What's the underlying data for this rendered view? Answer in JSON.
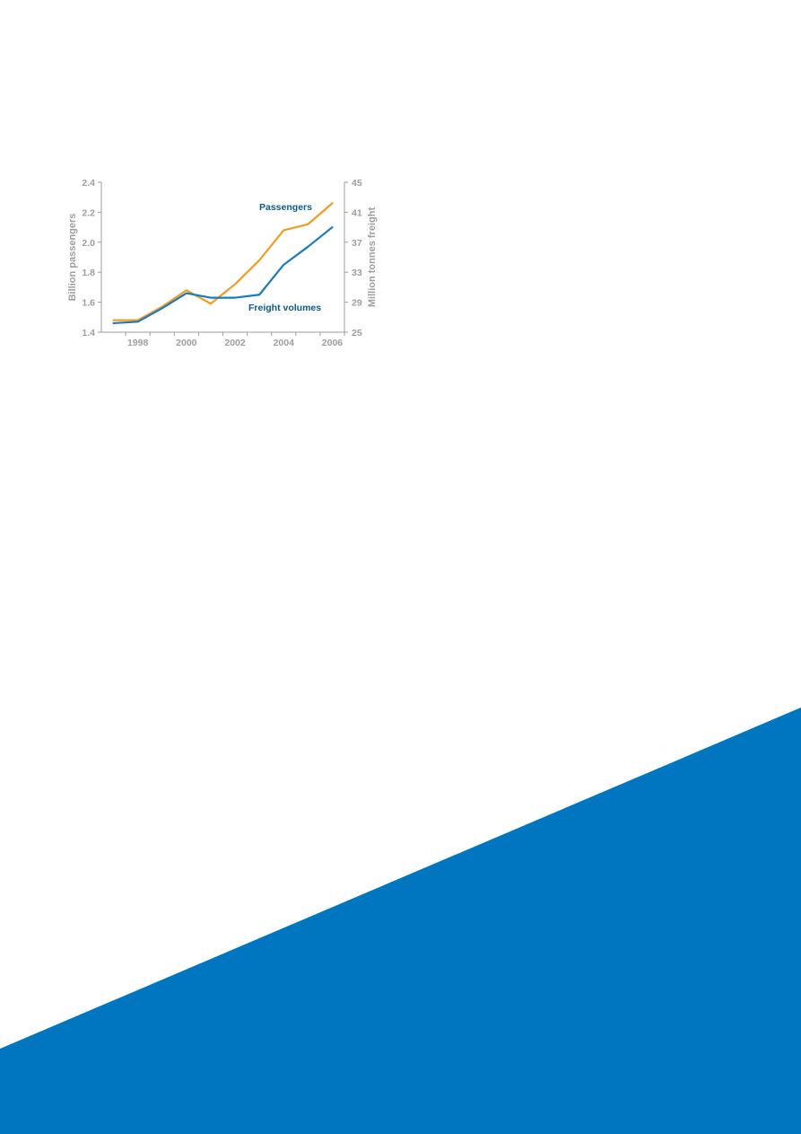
{
  "colors": {
    "background": "#ffffff",
    "axis": "#9e9e9e",
    "tick_text": "#9e9e9e",
    "passengers_line": "#f39c24",
    "freight_line": "#1a7bc0",
    "series_label_text": "#0a5a8c",
    "decorative_band": "#0075c0"
  },
  "chart_data": {
    "type": "line",
    "x": [
      1997,
      1998,
      1999,
      2000,
      2001,
      2002,
      2003,
      2004,
      2005,
      2006
    ],
    "x_ticks": [
      1998,
      2000,
      2002,
      2004,
      2006
    ],
    "x_tick_labels": [
      "1998",
      "2000",
      "2002",
      "2004",
      "2006"
    ],
    "xlim": [
      1996.5,
      2006.5
    ],
    "y_left": {
      "label": "Billion passengers",
      "ylim": [
        1.4,
        2.4
      ],
      "ticks": [
        1.4,
        1.6,
        1.8,
        2.0,
        2.2,
        2.4
      ],
      "tick_labels": [
        "1.4",
        "1.6",
        "1.8",
        "2.0",
        "2.2",
        "2.4"
      ]
    },
    "y_right": {
      "label": "Million tonnes freight",
      "ylim": [
        25,
        45
      ],
      "ticks": [
        25,
        29,
        33,
        37,
        41,
        45
      ],
      "tick_labels": [
        "25",
        "29",
        "33",
        "37",
        "41",
        "45"
      ]
    },
    "series": [
      {
        "name": "Passengers",
        "axis": "left",
        "color": "#f39c24",
        "values": [
          1.48,
          1.48,
          1.57,
          1.68,
          1.59,
          1.72,
          1.88,
          2.08,
          2.12,
          2.26
        ]
      },
      {
        "name": "Freight volumes",
        "axis": "left",
        "color": "#1a7bc0",
        "values": [
          1.46,
          1.47,
          1.56,
          1.66,
          1.63,
          1.63,
          1.65,
          1.85,
          1.97,
          2.1
        ]
      }
    ],
    "grid": false,
    "legend": "inline labels"
  }
}
